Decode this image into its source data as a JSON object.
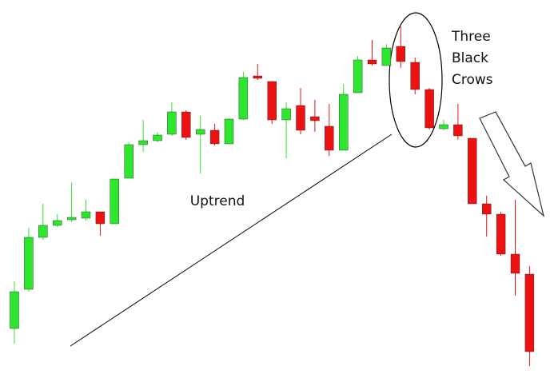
{
  "chart_data": {
    "type": "candlestick",
    "open": [
      72,
      121,
      186,
      201,
      208,
      210,
      218,
      203,
      260,
      302,
      307,
      315,
      343,
      315,
      320,
      303,
      334,
      388,
      381,
      333,
      351,
      337,
      325,
      295,
      367,
      408,
      401,
      425,
      405,
      371,
      322,
      327,
      310,
      228,
      215,
      165,
      140
    ],
    "close": [
      118,
      186,
      201,
      207,
      211,
      218,
      203,
      259,
      302,
      307,
      314,
      343,
      311,
      321,
      303,
      334,
      386,
      385,
      333,
      347,
      320,
      332,
      295,
      365,
      408,
      403,
      423,
      406,
      371,
      323,
      327,
      313,
      228,
      215,
      165,
      141,
      43
    ],
    "high": [
      131,
      198,
      228,
      215,
      255,
      233,
      218,
      259,
      305,
      333,
      318,
      355,
      345,
      338,
      328,
      335,
      393,
      403,
      381,
      355,
      373,
      358,
      353,
      378,
      413,
      433,
      428,
      450,
      411,
      373,
      333,
      353,
      310,
      238,
      218,
      233,
      150
    ],
    "low": [
      53,
      118,
      183,
      199,
      205,
      207,
      188,
      203,
      260,
      293,
      305,
      313,
      308,
      266,
      301,
      303,
      333,
      383,
      328,
      285,
      315,
      318,
      288,
      295,
      367,
      401,
      401,
      398,
      365,
      321,
      320,
      308,
      228,
      187,
      163,
      113,
      25
    ],
    "up_color": "#2ee62e",
    "down_color": "#ee1111",
    "trend_label": "Uptrend",
    "pattern_label": [
      "Three",
      "Black",
      "Crows"
    ]
  }
}
